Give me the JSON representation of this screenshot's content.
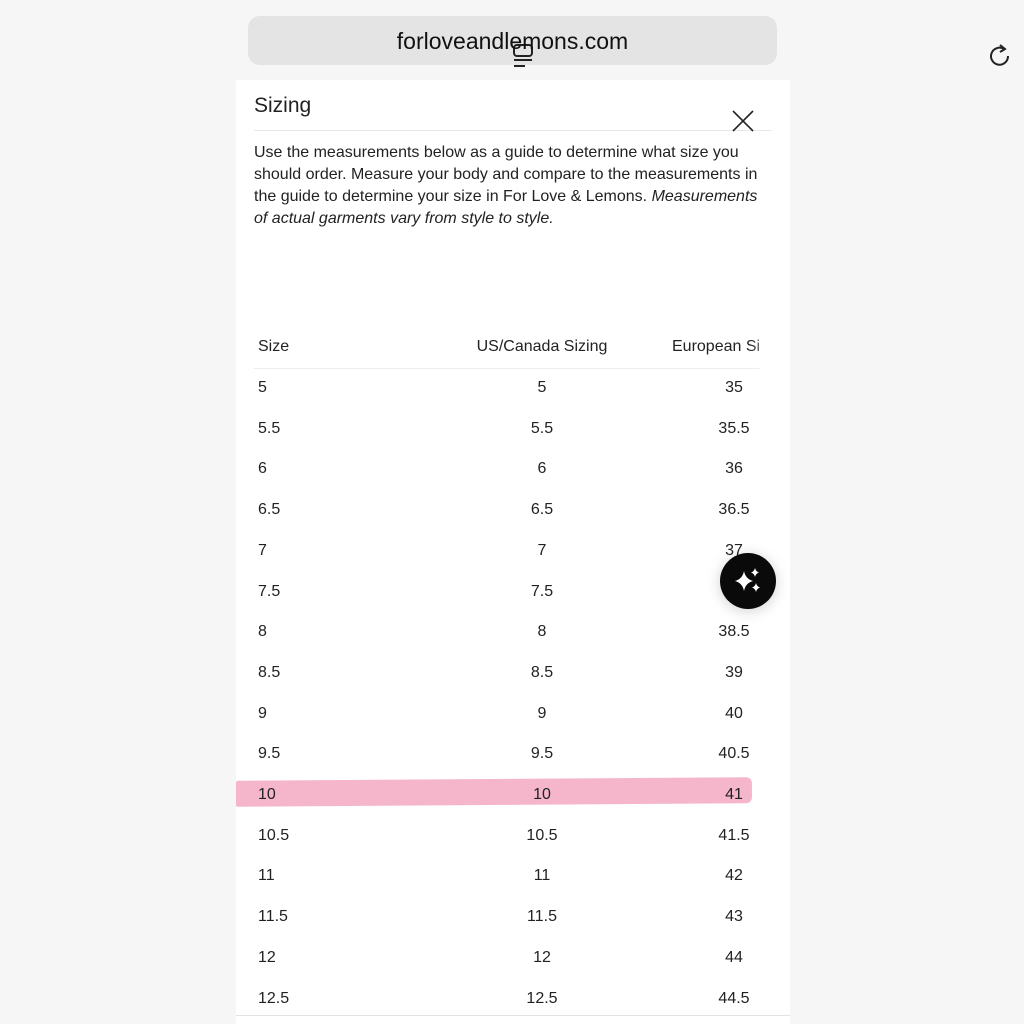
{
  "browser": {
    "url": "forloveandlemons.com"
  },
  "modal": {
    "title": "Sizing",
    "description": "Use the measurements below as a guide to determine what size you should order. Measure your body and compare to the measurements in the guide to determine your size in For Love & Lemons.",
    "description_italic": "Measurements of actual garments vary from style to style."
  },
  "table": {
    "headers": [
      "Size",
      "US/Canada Sizing",
      "European Si"
    ],
    "rows": [
      [
        "5",
        "5",
        "35"
      ],
      [
        "5.5",
        "5.5",
        "35.5"
      ],
      [
        "6",
        "6",
        "36"
      ],
      [
        "6.5",
        "6.5",
        "36.5"
      ],
      [
        "7",
        "7",
        "37"
      ],
      [
        "7.5",
        "7.5",
        ""
      ],
      [
        "8",
        "8",
        "38.5"
      ],
      [
        "8.5",
        "8.5",
        "39"
      ],
      [
        "9",
        "9",
        "40"
      ],
      [
        "9.5",
        "9.5",
        "40.5"
      ],
      [
        "10",
        "10",
        "41"
      ],
      [
        "10.5",
        "10.5",
        "41.5"
      ],
      [
        "11",
        "11",
        "42"
      ],
      [
        "11.5",
        "11.5",
        "43"
      ],
      [
        "12",
        "12",
        "44"
      ],
      [
        "12.5",
        "12.5",
        "44.5"
      ]
    ],
    "highlighted_row": "10",
    "highlight_color": "#f5b6cc"
  },
  "icons": {
    "tabs": "tabs-icon",
    "reload": "reload-icon",
    "close": "close-icon",
    "ai": "sparkles-icon"
  }
}
